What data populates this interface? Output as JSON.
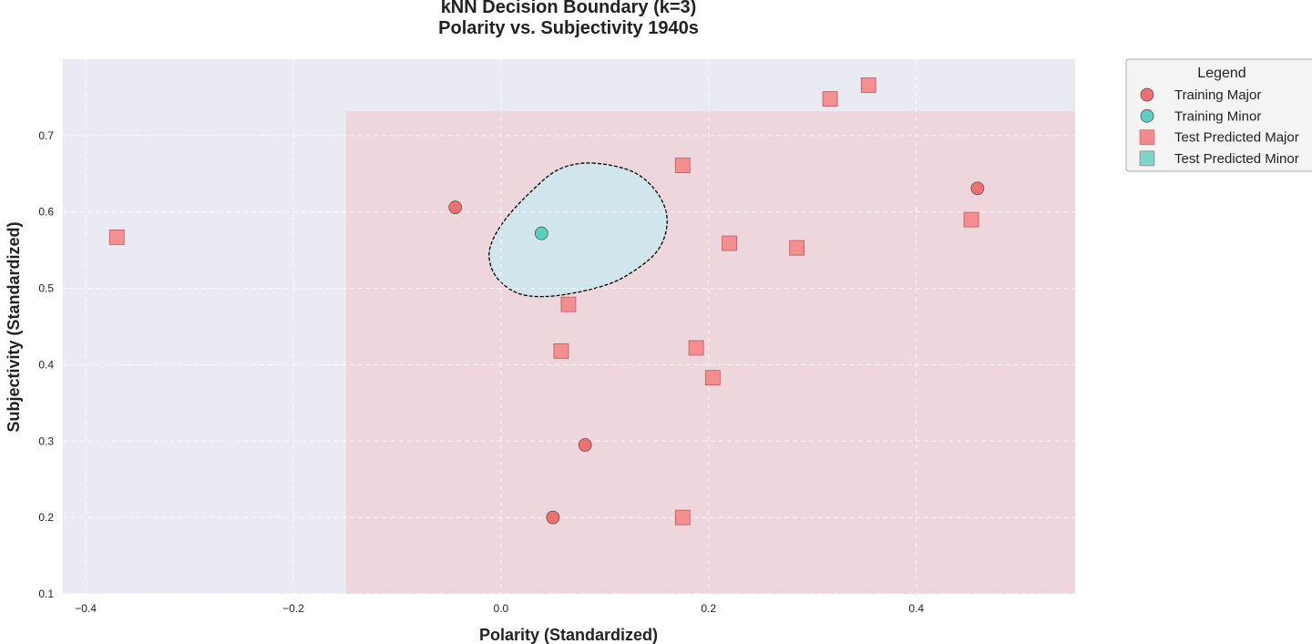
{
  "chart_data": {
    "type": "scatter",
    "title": "kNN Decision Boundary (k=3)",
    "subtitle": "Polarity vs. Subjectivity 1940s",
    "xlabel": "Polarity (Standardized)",
    "ylabel": "Subjectivity (Standardized)",
    "xlim": [
      -0.422,
      0.553
    ],
    "ylim": [
      0.1,
      0.8
    ],
    "xticks": [
      -0.4,
      -0.2,
      0.0,
      0.2,
      0.4
    ],
    "yticks": [
      0.1,
      0.2,
      0.3,
      0.4,
      0.5,
      0.6,
      0.7
    ],
    "grid": true,
    "legend_position": "outside-right",
    "legend_title": "Legend",
    "regions": [
      {
        "class": "Minor",
        "color": "#eaeaf2",
        "description": "background decision region"
      },
      {
        "class": "Major",
        "color": "#eed6dd",
        "x_range": [
          -0.149,
          0.553
        ],
        "y_range": [
          0.1,
          0.732
        ]
      },
      {
        "class": "Minor",
        "color": "#d0e6ec",
        "boundary": "dashed",
        "outline": [
          [
            0.088,
            0.664
          ],
          [
            0.128,
            0.652
          ],
          [
            0.152,
            0.622
          ],
          [
            0.16,
            0.586
          ],
          [
            0.15,
            0.548
          ],
          [
            0.12,
            0.516
          ],
          [
            0.09,
            0.5
          ],
          [
            0.05,
            0.49
          ],
          [
            0.02,
            0.492
          ],
          [
            0.0,
            0.508
          ],
          [
            -0.01,
            0.53
          ],
          [
            -0.01,
            0.556
          ],
          [
            0.004,
            0.59
          ],
          [
            0.03,
            0.628
          ],
          [
            0.056,
            0.656
          ]
        ]
      }
    ],
    "series": [
      {
        "name": "Training Major",
        "marker": "circle",
        "color": "#f07070",
        "points": [
          [
            -0.044,
            0.606
          ],
          [
            0.081,
            0.295
          ],
          [
            0.05,
            0.2
          ],
          [
            0.459,
            0.631
          ]
        ]
      },
      {
        "name": "Training Minor",
        "marker": "circle",
        "color": "#5ccdc1",
        "points": [
          [
            0.039,
            0.572
          ]
        ]
      },
      {
        "name": "Test Predicted Major",
        "marker": "square",
        "color": "#f58a8a",
        "points": [
          [
            -0.37,
            0.567
          ],
          [
            0.175,
            0.661
          ],
          [
            0.317,
            0.748
          ],
          [
            0.354,
            0.766
          ],
          [
            0.453,
            0.59
          ],
          [
            0.22,
            0.559
          ],
          [
            0.285,
            0.553
          ],
          [
            0.065,
            0.479
          ],
          [
            0.058,
            0.418
          ],
          [
            0.188,
            0.422
          ],
          [
            0.204,
            0.383
          ],
          [
            0.175,
            0.2
          ]
        ]
      },
      {
        "name": "Test Predicted Minor",
        "marker": "square",
        "color": "#7dd6cc",
        "points": []
      }
    ]
  }
}
